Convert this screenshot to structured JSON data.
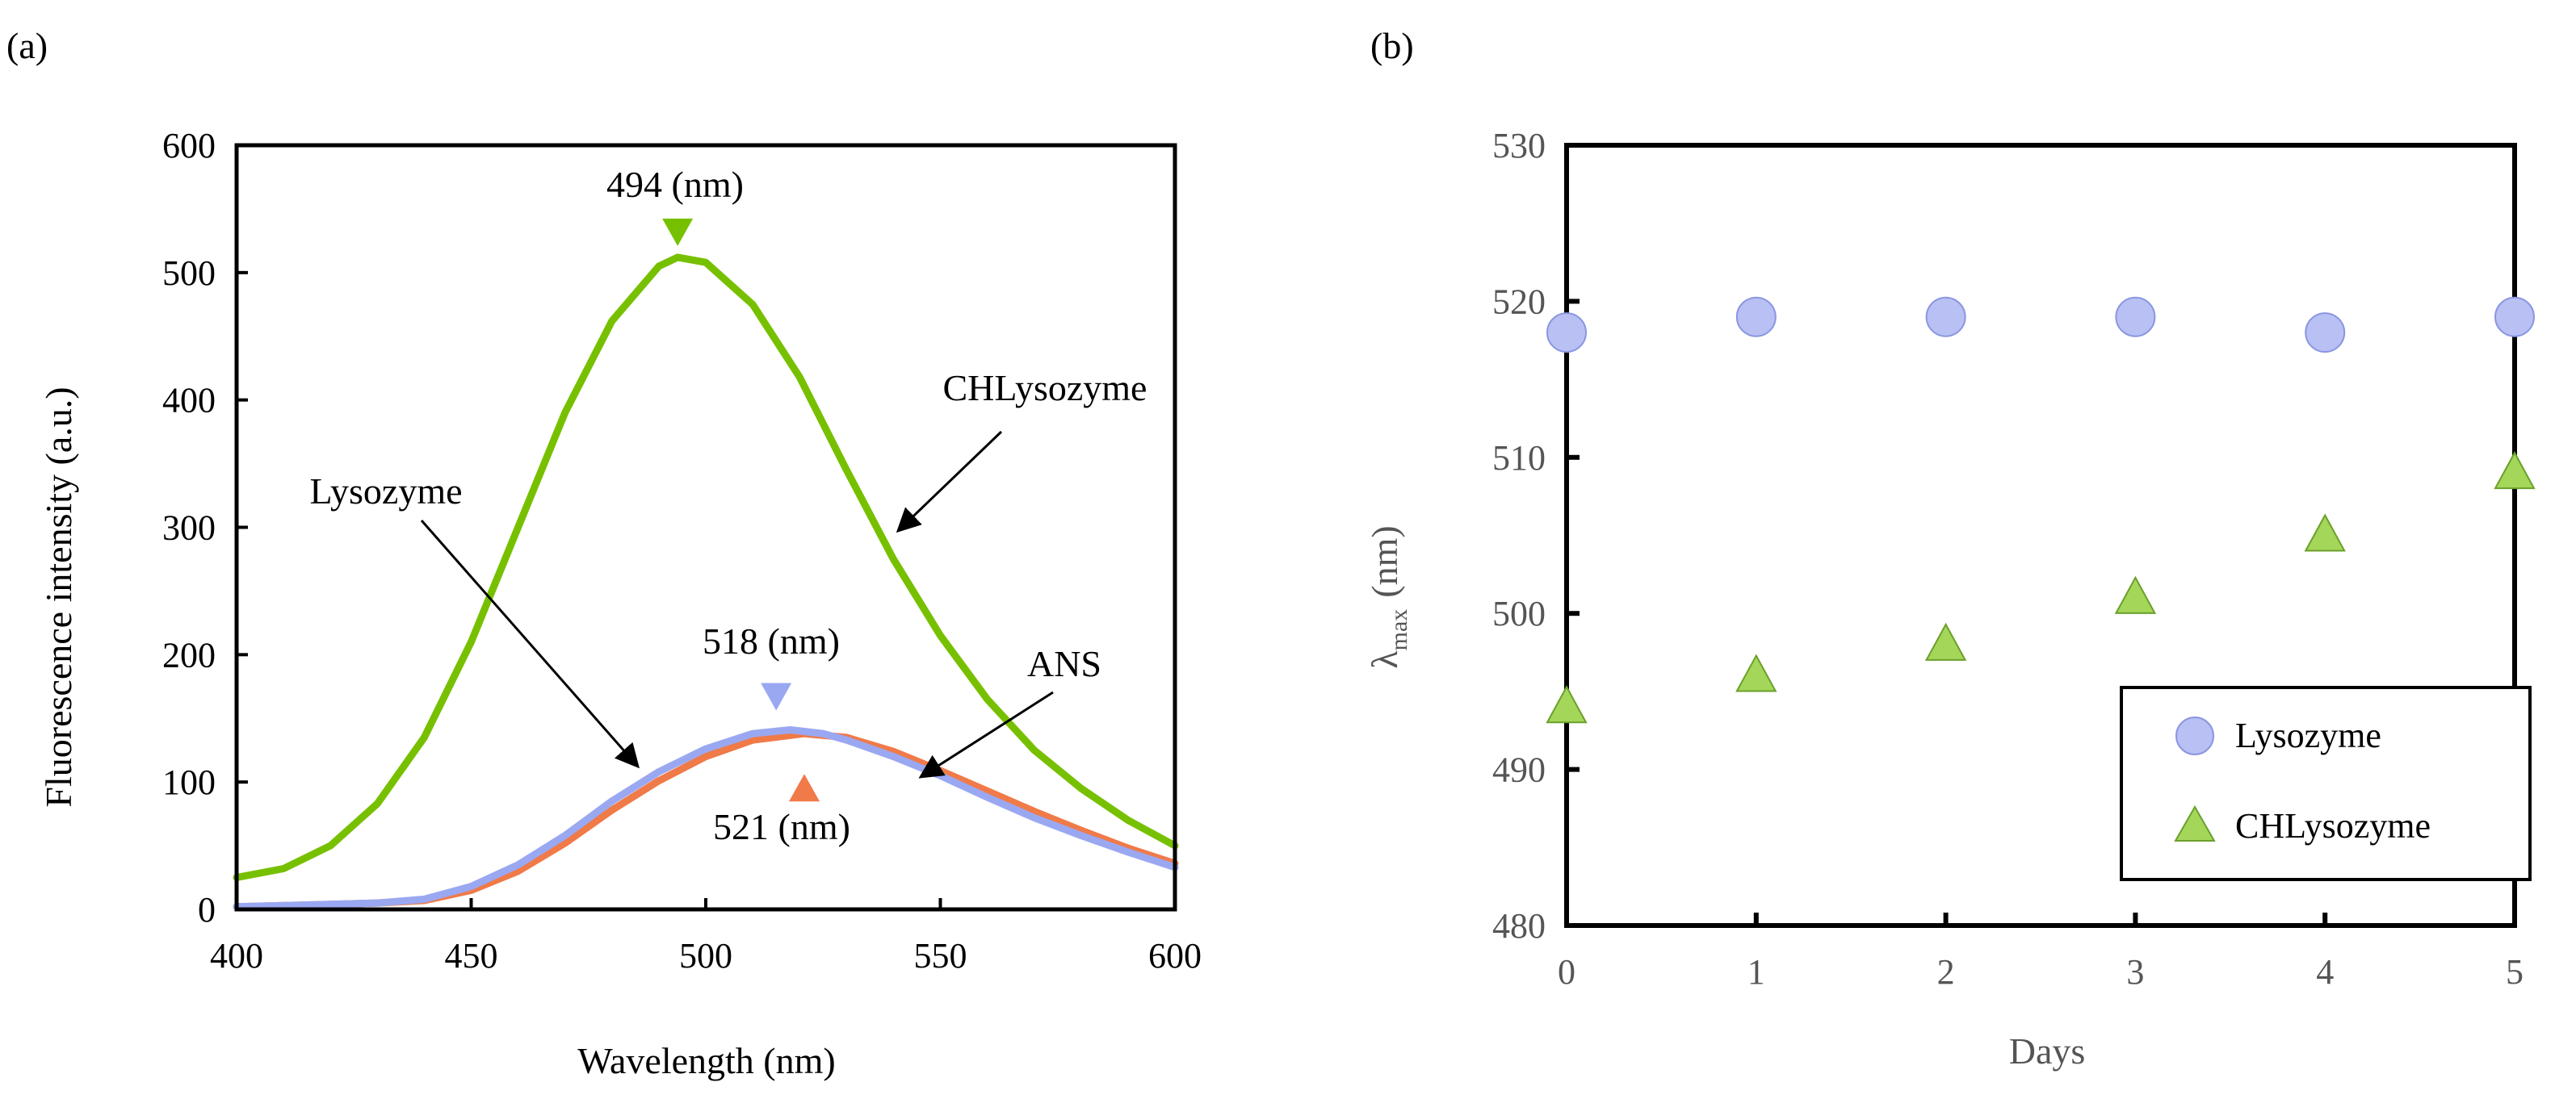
{
  "chart_data": [
    {
      "panel_label": "(a)",
      "type": "line",
      "xlabel": "Wavelength (nm)",
      "ylabel": "Fluorescence intensity (a.u.)",
      "xlim": [
        400,
        600
      ],
      "ylim": [
        0,
        600
      ],
      "xticks": [
        400,
        450,
        500,
        550,
        600
      ],
      "yticks": [
        0,
        100,
        200,
        300,
        400,
        500,
        600
      ],
      "grid": false,
      "series": [
        {
          "name": "CHLysozyme",
          "color": "#77c000",
          "x": [
            400,
            410,
            420,
            430,
            440,
            450,
            460,
            470,
            480,
            490,
            494,
            500,
            510,
            520,
            530,
            540,
            550,
            560,
            570,
            580,
            590,
            600
          ],
          "y": [
            25,
            32,
            50,
            83,
            135,
            210,
            300,
            390,
            462,
            505,
            512,
            508,
            475,
            418,
            345,
            275,
            215,
            165,
            125,
            95,
            70,
            50
          ]
        },
        {
          "name": "Lysozyme",
          "color": "#9aa8f2",
          "x": [
            400,
            410,
            420,
            430,
            440,
            450,
            460,
            470,
            480,
            490,
            500,
            510,
            518,
            525,
            530,
            540,
            550,
            560,
            570,
            580,
            590,
            600
          ],
          "y": [
            2,
            3,
            4,
            5,
            8,
            18,
            35,
            58,
            85,
            108,
            126,
            138,
            141,
            138,
            133,
            120,
            105,
            88,
            72,
            58,
            45,
            33
          ]
        },
        {
          "name": "ANS",
          "color": "#f07a48",
          "x": [
            400,
            410,
            420,
            430,
            440,
            450,
            460,
            470,
            480,
            490,
            500,
            510,
            521,
            530,
            540,
            550,
            560,
            570,
            580,
            590,
            600
          ],
          "y": [
            2,
            3,
            4,
            5,
            7,
            15,
            30,
            52,
            78,
            101,
            120,
            133,
            138,
            135,
            124,
            109,
            93,
            77,
            62,
            48,
            36
          ]
        }
      ],
      "annotations": [
        {
          "text": "494 (nm)",
          "x": 494,
          "y": 512,
          "marker": "down-triangle",
          "color": "#77c000"
        },
        {
          "text": "518 (nm)",
          "x": 515,
          "y": 141,
          "marker": "down-triangle",
          "color": "#9aa8f2"
        },
        {
          "text": "521 (nm)",
          "x": 521,
          "y": 138,
          "marker": "up-triangle",
          "color": "#f07a48"
        },
        {
          "text": "CHLysozyme",
          "arrow_to": [
            540,
            300
          ]
        },
        {
          "text": "Lysozyme",
          "arrow_to": [
            509,
            120
          ]
        },
        {
          "text": "ANS",
          "arrow_to": [
            530,
            105
          ]
        }
      ]
    },
    {
      "panel_label": "(b)",
      "type": "scatter",
      "xlabel": "Days",
      "ylabel": "λmax (nm)",
      "ylabel_symbol": "λ",
      "ylabel_sub": "max",
      "ylabel_unit": "(nm)",
      "xlim": [
        0,
        5
      ],
      "ylim": [
        480,
        530
      ],
      "xticks": [
        0,
        1,
        2,
        3,
        4,
        5
      ],
      "yticks": [
        480,
        490,
        500,
        510,
        520,
        530
      ],
      "grid": false,
      "legend_position": "bottom-right",
      "series": [
        {
          "name": "Lysozyme",
          "marker": "circle",
          "color": "#b8c0f4",
          "x": [
            0,
            1,
            2,
            3,
            4,
            5
          ],
          "y": [
            518,
            519,
            519,
            519,
            518,
            519
          ]
        },
        {
          "name": "CHLysozyme",
          "marker": "triangle",
          "color": "#a4d65a",
          "x": [
            0,
            1,
            2,
            3,
            4,
            5
          ],
          "y": [
            494,
            496,
            498,
            501,
            505,
            509
          ]
        }
      ]
    }
  ]
}
